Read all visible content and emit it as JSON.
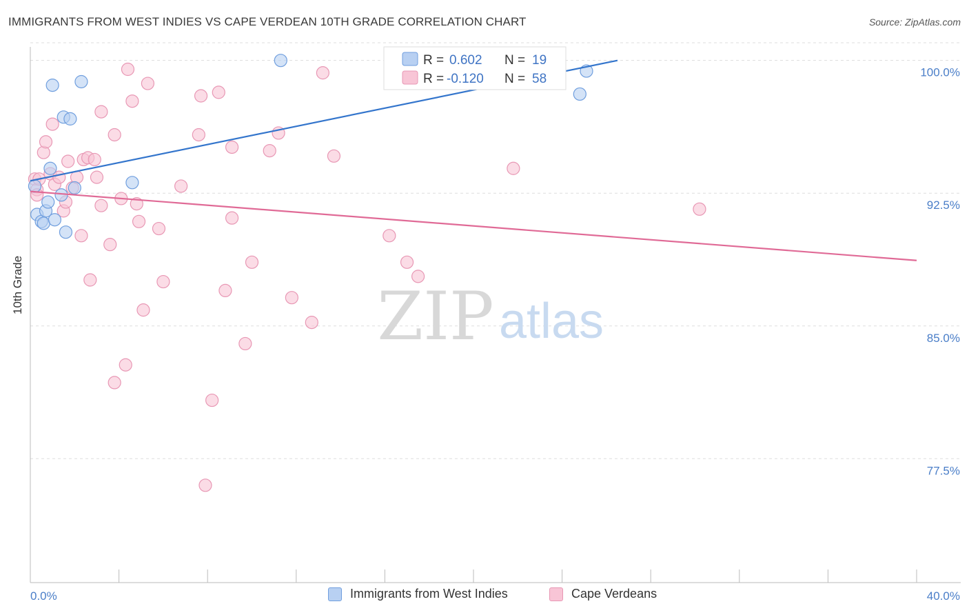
{
  "title": "IMMIGRANTS FROM WEST INDIES VS CAPE VERDEAN 10TH GRADE CORRELATION CHART",
  "source": "Source: ZipAtlas.com",
  "watermark": {
    "zip": "ZIP",
    "atlas": "atlas"
  },
  "legend": {
    "rows": [
      {
        "r_label": "R =",
        "r_value": "0.602",
        "n_label": "N =",
        "n_value": "19"
      },
      {
        "r_label": "R =",
        "r_value": "-0.120",
        "n_label": "N =",
        "n_value": "58"
      }
    ]
  },
  "bottom_legend": [
    "Immigrants from West Indies",
    "Cape Verdeans"
  ],
  "colors": {
    "blue_fill": "#b8d0f2",
    "blue_stroke": "#6f9ede",
    "blue_line": "#3375cc",
    "pink_fill": "#f8c5d6",
    "pink_stroke": "#e897b4",
    "pink_line": "#e06a96",
    "axis_text": "#4a7ec8",
    "grid": "#dddddd"
  },
  "chart_data": {
    "type": "scatter",
    "title": "IMMIGRANTS FROM WEST INDIES VS CAPE VERDEAN 10TH GRADE CORRELATION CHART",
    "xlabel": "",
    "ylabel": "10th Grade",
    "xlim": [
      0,
      40
    ],
    "ylim": [
      70.5,
      101
    ],
    "x_tick_labels": [
      "0.0%",
      "40.0%"
    ],
    "y_ticks": [
      77.5,
      85.0,
      92.5,
      100.0
    ],
    "y_tick_labels": [
      "77.5%",
      "85.0%",
      "92.5%",
      "100.0%"
    ],
    "series": [
      {
        "name": "Immigrants from West Indies",
        "r": 0.602,
        "n": 19,
        "trend": {
          "x0": 0.0,
          "y0": 93.2,
          "x1": 26.5,
          "y1": 100.0
        },
        "points": [
          [
            0.3,
            91.3
          ],
          [
            0.5,
            90.9
          ],
          [
            0.6,
            90.8
          ],
          [
            0.7,
            91.5
          ],
          [
            0.8,
            92.0
          ],
          [
            0.9,
            93.9
          ],
          [
            1.0,
            98.6
          ],
          [
            1.1,
            91.0
          ],
          [
            1.4,
            92.4
          ],
          [
            1.5,
            96.8
          ],
          [
            1.6,
            90.3
          ],
          [
            1.8,
            96.7
          ],
          [
            2.0,
            92.8
          ],
          [
            2.3,
            98.8
          ],
          [
            4.6,
            93.1
          ],
          [
            11.3,
            100.0
          ],
          [
            24.8,
            98.1
          ],
          [
            25.1,
            99.4
          ],
          [
            0.2,
            92.9
          ]
        ]
      },
      {
        "name": "Cape Verdeans",
        "r": -0.12,
        "n": 58,
        "trend": {
          "x0": 0.0,
          "y0": 92.6,
          "x1": 40.0,
          "y1": 88.7
        },
        "points": [
          [
            0.2,
            93.3
          ],
          [
            0.3,
            92.7
          ],
          [
            0.4,
            93.3
          ],
          [
            0.6,
            94.8
          ],
          [
            0.7,
            95.4
          ],
          [
            0.9,
            93.6
          ],
          [
            1.0,
            96.4
          ],
          [
            1.1,
            93.0
          ],
          [
            1.3,
            93.4
          ],
          [
            1.5,
            91.5
          ],
          [
            1.6,
            92.0
          ],
          [
            1.7,
            94.3
          ],
          [
            1.9,
            92.8
          ],
          [
            2.1,
            93.4
          ],
          [
            2.3,
            90.1
          ],
          [
            2.4,
            94.4
          ],
          [
            2.6,
            94.5
          ],
          [
            2.7,
            87.6
          ],
          [
            2.9,
            94.4
          ],
          [
            3.0,
            93.4
          ],
          [
            3.2,
            91.8
          ],
          [
            3.2,
            97.1
          ],
          [
            3.6,
            89.6
          ],
          [
            3.8,
            95.8
          ],
          [
            4.1,
            92.2
          ],
          [
            4.3,
            82.8
          ],
          [
            4.4,
            99.5
          ],
          [
            4.6,
            97.7
          ],
          [
            4.8,
            91.9
          ],
          [
            4.9,
            90.9
          ],
          [
            5.1,
            85.9
          ],
          [
            5.3,
            98.7
          ],
          [
            5.8,
            90.5
          ],
          [
            6.0,
            87.5
          ],
          [
            6.8,
            92.9
          ],
          [
            7.6,
            95.8
          ],
          [
            7.7,
            98.0
          ],
          [
            7.9,
            76.0
          ],
          [
            8.2,
            80.8
          ],
          [
            8.5,
            98.2
          ],
          [
            8.8,
            87.0
          ],
          [
            9.1,
            95.1
          ],
          [
            9.1,
            91.1
          ],
          [
            9.7,
            84.0
          ],
          [
            10.0,
            88.6
          ],
          [
            10.8,
            94.9
          ],
          [
            11.2,
            95.9
          ],
          [
            11.8,
            86.6
          ],
          [
            12.7,
            85.2
          ],
          [
            13.2,
            99.3
          ],
          [
            13.7,
            94.6
          ],
          [
            16.2,
            90.1
          ],
          [
            17.0,
            88.6
          ],
          [
            17.5,
            87.8
          ],
          [
            21.8,
            93.9
          ],
          [
            30.2,
            91.6
          ],
          [
            3.8,
            81.8
          ],
          [
            0.3,
            92.4
          ]
        ]
      }
    ]
  }
}
